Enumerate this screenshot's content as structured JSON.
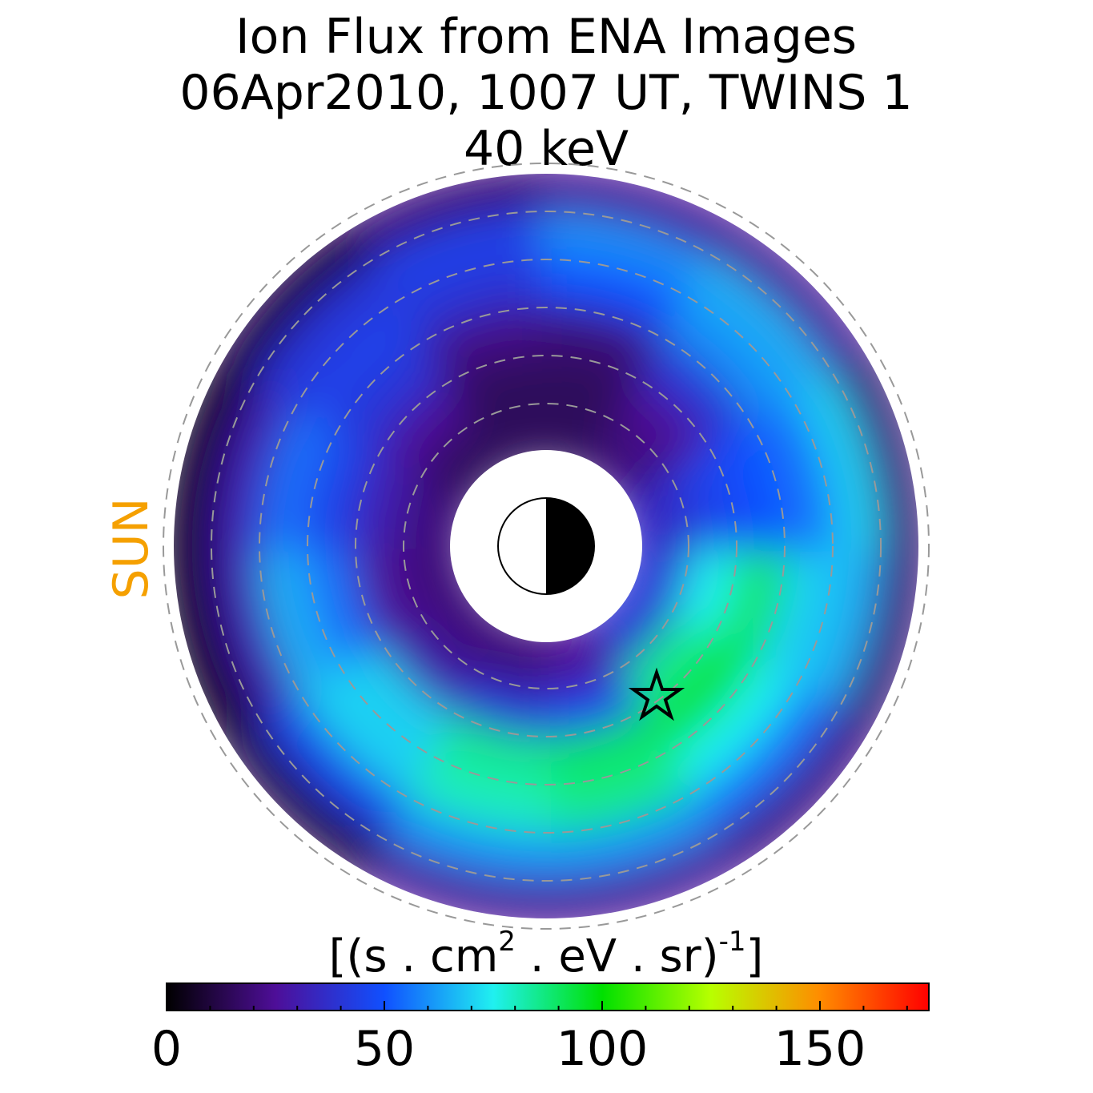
{
  "chart_data": {
    "type": "polar-heatmap",
    "title": [
      "Ion Flux from  ENA Images",
      "06Apr2010, 1007 UT,  TWINS 1",
      "40 keV"
    ],
    "side_label": "SUN",
    "side_label_color": "#f5a000",
    "values": [
      [
        40,
        40,
        25,
        20,
        20,
        20,
        20,
        15,
        15,
        15,
        20,
        35
      ],
      [
        75,
        85,
        45,
        40,
        30,
        25,
        30,
        25,
        15,
        15,
        25,
        45
      ],
      [
        90,
        95,
        90,
        85,
        70,
        55,
        45,
        40,
        22,
        20,
        40,
        50
      ],
      [
        70,
        75,
        85,
        80,
        70,
        65,
        55,
        45,
        40,
        50,
        60,
        55
      ],
      [
        65,
        55,
        60,
        60,
        45,
        30,
        30,
        40,
        45,
        60,
        65,
        70
      ],
      [
        20,
        22,
        25,
        25,
        12,
        5,
        5,
        10,
        20,
        25,
        25,
        20
      ]
    ],
    "colorbar": {
      "label": [
        "[(s . cm",
        "2",
        " . eV . sr)",
        "-1",
        "]"
      ],
      "lim": [
        0,
        175
      ],
      "ticks": [
        0,
        50,
        100,
        150
      ],
      "minor_ticks": [
        10,
        20,
        30,
        40,
        60,
        70,
        80,
        90,
        110,
        120,
        130,
        140,
        160,
        170
      ],
      "colors": [
        "#000000",
        "#4e0e98",
        "#1050ff",
        "#20f0f0",
        "#00e000",
        "#b8ff00",
        "#ff8c00",
        "#ff0000"
      ]
    }
  }
}
